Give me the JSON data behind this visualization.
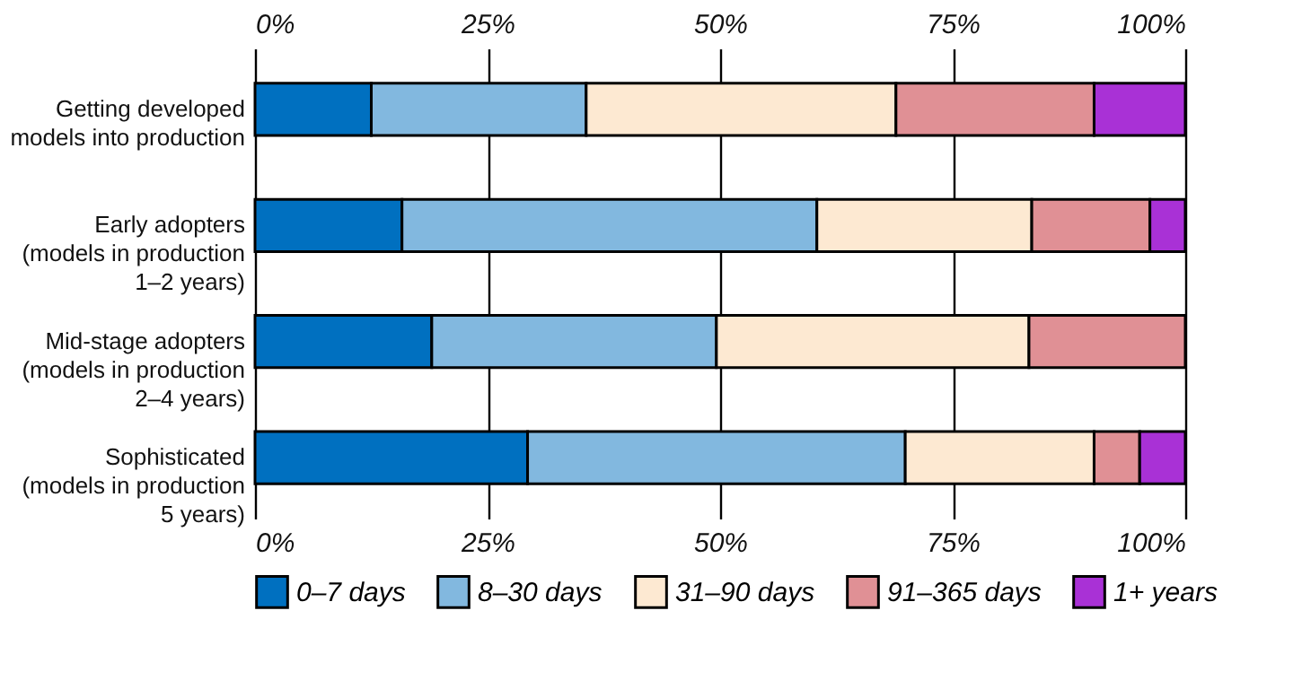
{
  "chart_data": {
    "type": "bar",
    "orientation": "horizontal",
    "stacked": true,
    "categories": [
      "Getting developed models into production",
      "Early adopters (models in production 1–2 years)",
      "Mid-stage adopters (models in production 2–4 years)",
      "Sophisticated (models in production 5 years)"
    ],
    "series": [
      {
        "name": "0–7 days",
        "color": "#0070c0",
        "values": [
          12.5,
          15.8,
          19.0,
          29.3
        ]
      },
      {
        "name": "8–30 days",
        "color": "#82b8df",
        "values": [
          23.1,
          44.6,
          30.6,
          40.6
        ]
      },
      {
        "name": "31–90 days",
        "color": "#fde9d2",
        "values": [
          33.3,
          23.1,
          33.6,
          20.3
        ]
      },
      {
        "name": "91–365 days",
        "color": "#e09095",
        "values": [
          21.3,
          12.7,
          16.8,
          4.9
        ]
      },
      {
        "name": "1+ years",
        "color": "#a931d6",
        "values": [
          9.8,
          3.8,
          null,
          4.9
        ]
      }
    ],
    "xlim": [
      0,
      100
    ],
    "xticks": [
      {
        "value": 0,
        "label": "0%"
      },
      {
        "value": 25,
        "label": "25%"
      },
      {
        "value": 50,
        "label": "50%"
      },
      {
        "value": 75,
        "label": "75%"
      },
      {
        "value": 100,
        "label": "100%"
      }
    ],
    "x2lim": [
      0,
      100
    ],
    "x2ticks": [
      {
        "value": 0,
        "label": "0%"
      },
      {
        "value": 25,
        "label": "25%"
      },
      {
        "value": 50,
        "label": "50%"
      },
      {
        "value": 75,
        "label": "75%"
      },
      {
        "value": 100,
        "label": "100%"
      }
    ],
    "grid": "x",
    "legend": "bottom"
  }
}
